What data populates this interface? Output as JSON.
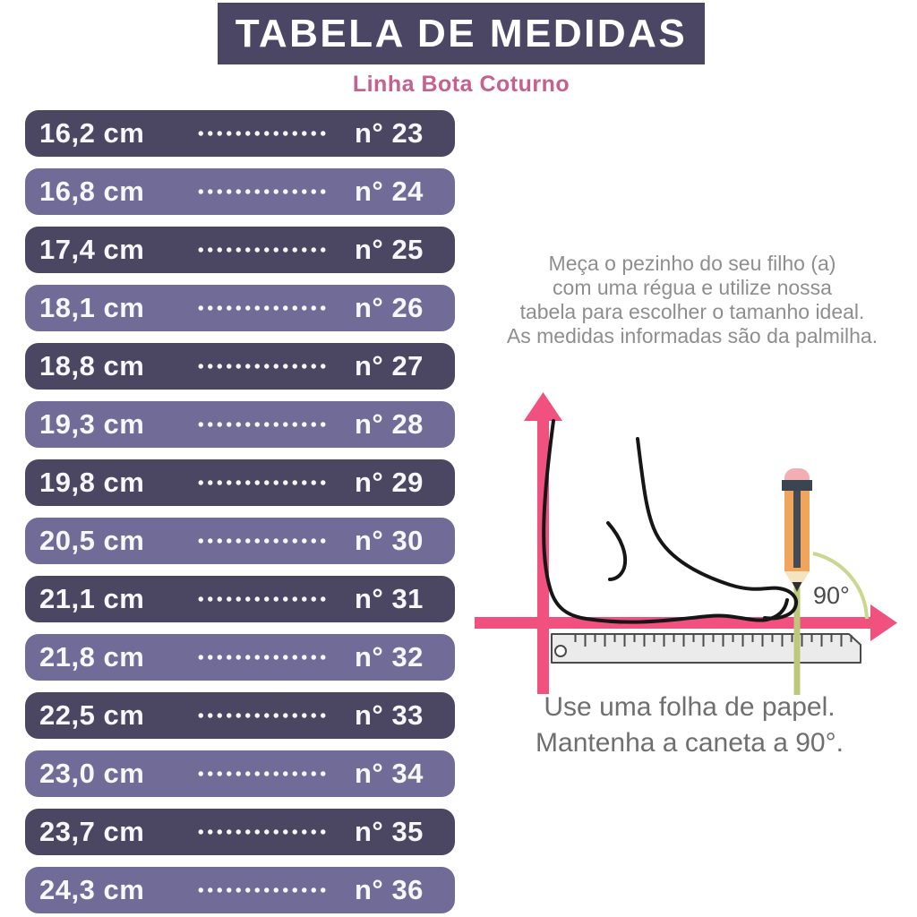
{
  "header": {
    "title": "TABELA DE MEDIDAS",
    "subtitle": "Linha Bota Coturno"
  },
  "size_table": {
    "rows": [
      {
        "size_cm": "16,2 cm",
        "number": "n° 23"
      },
      {
        "size_cm": "16,8 cm",
        "number": "n° 24"
      },
      {
        "size_cm": "17,4 cm",
        "number": "n° 25"
      },
      {
        "size_cm": "18,1 cm",
        "number": "n° 26"
      },
      {
        "size_cm": "18,8 cm",
        "number": "n° 27"
      },
      {
        "size_cm": "19,3 cm",
        "number": "n° 28"
      },
      {
        "size_cm": "19,8 cm",
        "number": "n° 29"
      },
      {
        "size_cm": "20,5 cm",
        "number": "n° 30"
      },
      {
        "size_cm": "21,1 cm",
        "number": "n° 31"
      },
      {
        "size_cm": "21,8 cm",
        "number": "n° 32"
      },
      {
        "size_cm": "22,5 cm",
        "number": "n° 33"
      },
      {
        "size_cm": "23,0 cm",
        "number": "n° 34"
      },
      {
        "size_cm": "23,7 cm",
        "number": "n° 35"
      },
      {
        "size_cm": "24,3 cm",
        "number": "n° 36"
      }
    ]
  },
  "instructions": {
    "lines": [
      "Meça o pezinho do seu filho (a)",
      "com uma régua e utilize nossa",
      "tabela para escolher o tamanho ideal.",
      "As medidas informadas são da palmilha."
    ]
  },
  "diagram": {
    "angle_label": "90°"
  },
  "footer_note": {
    "lines": [
      "Use uma folha de papel.",
      "Mantenha a caneta a 90°."
    ]
  },
  "colors": {
    "header_bg": "#4a4664",
    "subtitle_pink": "#c4618f",
    "row_dark": "#4b4762",
    "row_light": "#716c97",
    "axis_pink": "#f0517e",
    "pencil_orange": "#f0a55c",
    "pencil_eraser": "#f3aeb3",
    "pencil_band": "#3a4551",
    "guide_green": "#bdc87d",
    "arc_green": "#c9d78f",
    "ruler_gray": "#ebebeb",
    "text_gray": "#8e8e8e"
  }
}
